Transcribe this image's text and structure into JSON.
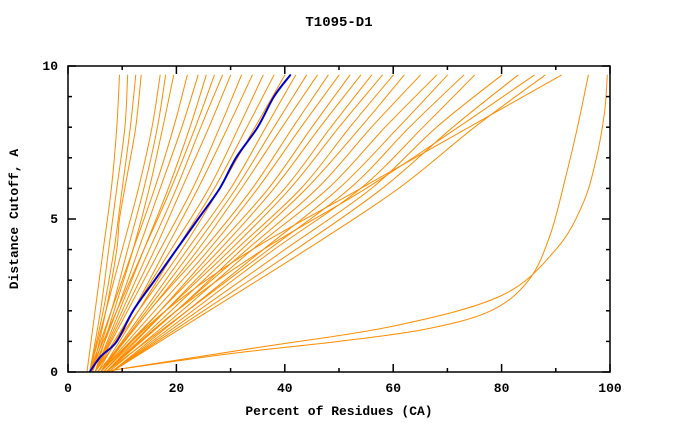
{
  "chart_data": {
    "type": "line",
    "title": "T1095-D1",
    "xlabel": "Percent of Residues (CA)",
    "ylabel": "Distance Cutoff, A",
    "xlim": [
      0,
      100
    ],
    "ylim": [
      0,
      10
    ],
    "xticks": [
      0,
      20,
      40,
      60,
      80,
      100
    ],
    "yticks": [
      0,
      5,
      10
    ],
    "xminor": [
      10,
      30,
      50,
      70,
      90
    ],
    "yminor": [
      1,
      2,
      3,
      4,
      6,
      7,
      8,
      9
    ],
    "grid": false,
    "legend": "none",
    "colors": {
      "model": "#ff8c00",
      "highlight": "#0000cd",
      "axis": "#000000"
    },
    "curves": [
      {
        "color": "#ff8c00",
        "points": [
          [
            3.5,
            0
          ],
          [
            5,
            2
          ],
          [
            6.5,
            4
          ],
          [
            8,
            6
          ],
          [
            9,
            8
          ],
          [
            9.5,
            9.7
          ]
        ]
      },
      {
        "color": "#ff8c00",
        "points": [
          [
            4,
            0
          ],
          [
            6,
            2
          ],
          [
            7.5,
            4
          ],
          [
            9,
            6
          ],
          [
            10.5,
            8
          ],
          [
            11,
            9.7
          ]
        ]
      },
      {
        "color": "#ff8c00",
        "points": [
          [
            4,
            0
          ],
          [
            6.5,
            2
          ],
          [
            8.5,
            4
          ],
          [
            10,
            6
          ],
          [
            11.5,
            8
          ],
          [
            12.5,
            9.7
          ]
        ]
      },
      {
        "color": "#ff8c00",
        "points": [
          [
            4.5,
            0
          ],
          [
            7,
            2
          ],
          [
            9,
            4
          ],
          [
            9.5,
            5
          ],
          [
            11,
            6.5
          ],
          [
            12.5,
            8
          ],
          [
            13.5,
            9.7
          ]
        ]
      },
      {
        "color": "#ff8c00",
        "points": [
          [
            4,
            0
          ],
          [
            7,
            2
          ],
          [
            10,
            4
          ],
          [
            13,
            6
          ],
          [
            15.5,
            8
          ],
          [
            17,
            9.7
          ]
        ]
      },
      {
        "color": "#ff8c00",
        "points": [
          [
            4.5,
            0
          ],
          [
            8,
            2
          ],
          [
            11,
            4
          ],
          [
            14,
            6
          ],
          [
            16.5,
            8
          ],
          [
            18,
            9.7
          ]
        ]
      },
      {
        "color": "#ff8c00",
        "points": [
          [
            5,
            0
          ],
          [
            8.5,
            2
          ],
          [
            12,
            4
          ],
          [
            15,
            6
          ],
          [
            17.5,
            8
          ],
          [
            19.5,
            9.7
          ]
        ]
      },
      {
        "color": "#ff8c00",
        "points": [
          [
            4,
            0
          ],
          [
            8,
            2
          ],
          [
            12,
            4
          ],
          [
            16,
            6
          ],
          [
            19.5,
            8
          ],
          [
            22,
            9.7
          ]
        ]
      },
      {
        "color": "#ff8c00",
        "points": [
          [
            4.5,
            0
          ],
          [
            9,
            2
          ],
          [
            13,
            4
          ],
          [
            17,
            6
          ],
          [
            21,
            8
          ],
          [
            24,
            9.7
          ]
        ]
      },
      {
        "color": "#ff8c00",
        "points": [
          [
            5,
            0
          ],
          [
            9.5,
            2
          ],
          [
            14,
            4
          ],
          [
            18.5,
            6
          ],
          [
            22.5,
            8
          ],
          [
            25.5,
            9.7
          ]
        ]
      },
      {
        "color": "#ff8c00",
        "points": [
          [
            4,
            0
          ],
          [
            9,
            2
          ],
          [
            14,
            4
          ],
          [
            19,
            6
          ],
          [
            23.5,
            8
          ],
          [
            27,
            9.7
          ]
        ]
      },
      {
        "color": "#ff8c00",
        "points": [
          [
            5,
            0
          ],
          [
            10,
            2
          ],
          [
            15,
            4
          ],
          [
            20,
            6
          ],
          [
            24.5,
            8
          ],
          [
            28.5,
            9.7
          ]
        ]
      },
      {
        "color": "#ff8c00",
        "points": [
          [
            5,
            0
          ],
          [
            10.5,
            2
          ],
          [
            16,
            4
          ],
          [
            21,
            6
          ],
          [
            26,
            8
          ],
          [
            30,
            9.7
          ]
        ]
      },
      {
        "color": "#ff8c00",
        "points": [
          [
            5,
            0
          ],
          [
            11,
            2
          ],
          [
            17,
            4
          ],
          [
            23,
            6
          ],
          [
            28,
            8
          ],
          [
            32,
            9.7
          ]
        ]
      },
      {
        "color": "#ff8c00",
        "points": [
          [
            5.5,
            0
          ],
          [
            12,
            2
          ],
          [
            18,
            4
          ],
          [
            24,
            6
          ],
          [
            29.5,
            8
          ],
          [
            34,
            9.7
          ]
        ]
      },
      {
        "color": "#ff8c00",
        "points": [
          [
            5,
            0
          ],
          [
            12,
            2
          ],
          [
            19,
            4
          ],
          [
            26,
            6
          ],
          [
            31.5,
            8
          ],
          [
            36,
            9.7
          ]
        ]
      },
      {
        "color": "#ff8c00",
        "points": [
          [
            6,
            0
          ],
          [
            13,
            2
          ],
          [
            20,
            4
          ],
          [
            27,
            6
          ],
          [
            33,
            8
          ],
          [
            38,
            9.7
          ]
        ]
      },
      {
        "color": "#ff8c00",
        "points": [
          [
            5,
            0
          ],
          [
            13,
            2
          ],
          [
            21,
            4
          ],
          [
            28,
            6
          ],
          [
            34.5,
            8
          ],
          [
            40,
            9.7
          ]
        ]
      },
      {
        "color": "#ff8c00",
        "points": [
          [
            6,
            0
          ],
          [
            14,
            2
          ],
          [
            22,
            4
          ],
          [
            30,
            6
          ],
          [
            36.5,
            8
          ],
          [
            42,
            9.7
          ]
        ]
      },
      {
        "color": "#ff8c00",
        "points": [
          [
            6,
            0
          ],
          [
            14.5,
            2
          ],
          [
            23,
            4
          ],
          [
            31,
            6
          ],
          [
            38,
            8
          ],
          [
            44,
            9.7
          ]
        ]
      },
      {
        "color": "#ff8c00",
        "points": [
          [
            5.5,
            0
          ],
          [
            15,
            2
          ],
          [
            24,
            4
          ],
          [
            32,
            6
          ],
          [
            39.5,
            8
          ],
          [
            46,
            9.7
          ]
        ]
      },
      {
        "color": "#ff8c00",
        "points": [
          [
            6,
            0
          ],
          [
            15,
            2
          ],
          [
            25,
            4
          ],
          [
            34,
            6
          ],
          [
            41.5,
            8
          ],
          [
            48,
            9.7
          ]
        ]
      },
      {
        "color": "#ff8c00",
        "points": [
          [
            6,
            0
          ],
          [
            16,
            2
          ],
          [
            26,
            4
          ],
          [
            35,
            6
          ],
          [
            43,
            8
          ],
          [
            50,
            9.7
          ]
        ]
      },
      {
        "color": "#ff8c00",
        "points": [
          [
            6.5,
            0
          ],
          [
            17,
            2
          ],
          [
            27,
            4
          ],
          [
            37,
            6
          ],
          [
            45,
            8
          ],
          [
            52,
            9.7
          ]
        ]
      },
      {
        "color": "#ff8c00",
        "points": [
          [
            6,
            0
          ],
          [
            17,
            2
          ],
          [
            28,
            4
          ],
          [
            38,
            6
          ],
          [
            46.5,
            8
          ],
          [
            54,
            9.7
          ]
        ]
      },
      {
        "color": "#ff8c00",
        "points": [
          [
            7,
            0
          ],
          [
            18,
            2
          ],
          [
            29,
            4
          ],
          [
            40,
            6
          ],
          [
            48.5,
            8
          ],
          [
            56,
            9.7
          ]
        ]
      },
      {
        "color": "#ff8c00",
        "points": [
          [
            6.5,
            0
          ],
          [
            18,
            2
          ],
          [
            30,
            4
          ],
          [
            41,
            6
          ],
          [
            50,
            8
          ],
          [
            58,
            9.7
          ]
        ]
      },
      {
        "color": "#ff8c00",
        "points": [
          [
            7,
            0
          ],
          [
            19,
            2
          ],
          [
            31,
            4
          ],
          [
            43,
            6
          ],
          [
            52,
            8
          ],
          [
            60,
            9.7
          ]
        ]
      },
      {
        "color": "#ff8c00",
        "points": [
          [
            7,
            0
          ],
          [
            20,
            2
          ],
          [
            32,
            4
          ],
          [
            44,
            6
          ],
          [
            54,
            8
          ],
          [
            62,
            9.7
          ]
        ]
      },
      {
        "color": "#ff8c00",
        "points": [
          [
            7,
            0
          ],
          [
            20,
            2
          ],
          [
            33,
            4
          ],
          [
            46,
            6
          ],
          [
            56,
            8
          ],
          [
            65,
            9.7
          ]
        ]
      },
      {
        "color": "#ff8c00",
        "points": [
          [
            7.5,
            0
          ],
          [
            21,
            2
          ],
          [
            34,
            4
          ],
          [
            48,
            6
          ],
          [
            58.5,
            8
          ],
          [
            68,
            9.7
          ]
        ]
      },
      {
        "color": "#ff8c00",
        "points": [
          [
            8,
            0
          ],
          [
            22,
            2
          ],
          [
            36,
            4
          ],
          [
            50,
            6
          ],
          [
            61,
            8
          ],
          [
            70,
            9.7
          ]
        ]
      },
      {
        "color": "#ff8c00",
        "points": [
          [
            7,
            0
          ],
          [
            22,
            2
          ],
          [
            37,
            4
          ],
          [
            52,
            6
          ],
          [
            63,
            8
          ],
          [
            73,
            9.7
          ]
        ]
      },
      {
        "color": "#ff8c00",
        "points": [
          [
            8,
            0
          ],
          [
            23,
            2
          ],
          [
            38,
            4
          ],
          [
            54,
            6
          ],
          [
            65.5,
            8
          ],
          [
            75,
            9.7
          ]
        ]
      },
      {
        "color": "#ff8c00",
        "points": [
          [
            8,
            0
          ],
          [
            24,
            2
          ],
          [
            40,
            4
          ],
          [
            56,
            6
          ],
          [
            68,
            8
          ],
          [
            80,
            9.7
          ]
        ]
      },
      {
        "color": "#ff8c00",
        "points": [
          [
            8,
            0
          ],
          [
            25,
            2
          ],
          [
            42,
            4
          ],
          [
            58,
            6
          ],
          [
            71,
            8
          ],
          [
            83,
            9.7
          ]
        ]
      },
      {
        "color": "#ff8c00",
        "points": [
          [
            7,
            0
          ],
          [
            20,
            2
          ],
          [
            36,
            4
          ],
          [
            55,
            6
          ],
          [
            72,
            8
          ],
          [
            86,
            9.7
          ]
        ]
      },
      {
        "color": "#ff8c00",
        "points": [
          [
            8,
            0
          ],
          [
            26,
            2
          ],
          [
            44,
            4
          ],
          [
            61,
            6
          ],
          [
            75,
            8
          ],
          [
            88,
            9.7
          ]
        ]
      },
      {
        "color": "#ff8c00",
        "points": [
          [
            6,
            0
          ],
          [
            18,
            2
          ],
          [
            34,
            4
          ],
          [
            54,
            6
          ],
          [
            74,
            8
          ],
          [
            91,
            9.7
          ]
        ]
      },
      {
        "color": "#ff8c00",
        "points": [
          [
            6,
            0
          ],
          [
            30,
            0.6
          ],
          [
            50,
            1.0
          ],
          [
            66,
            1.4
          ],
          [
            78,
            2.0
          ],
          [
            85,
            3.0
          ],
          [
            89,
            4.5
          ],
          [
            92,
            6.5
          ],
          [
            94,
            8
          ],
          [
            96,
            9.7
          ]
        ]
      },
      {
        "color": "#ff8c00",
        "points": [
          [
            6,
            0
          ],
          [
            35,
            0.8
          ],
          [
            60,
            1.5
          ],
          [
            80,
            2.5
          ],
          [
            90,
            4
          ],
          [
            95,
            5.5
          ],
          [
            97.5,
            7
          ],
          [
            99,
            8.5
          ],
          [
            99.5,
            9.7
          ]
        ]
      },
      {
        "color": "#0000cd",
        "width": 2,
        "highlight": true,
        "points": [
          [
            4,
            0
          ],
          [
            6,
            0.5
          ],
          [
            9,
            1
          ],
          [
            12,
            2
          ],
          [
            16,
            3
          ],
          [
            20,
            4
          ],
          [
            24,
            5
          ],
          [
            28,
            6
          ],
          [
            31,
            7
          ],
          [
            35,
            8
          ],
          [
            38,
            9
          ],
          [
            41,
            9.7
          ]
        ]
      }
    ]
  }
}
